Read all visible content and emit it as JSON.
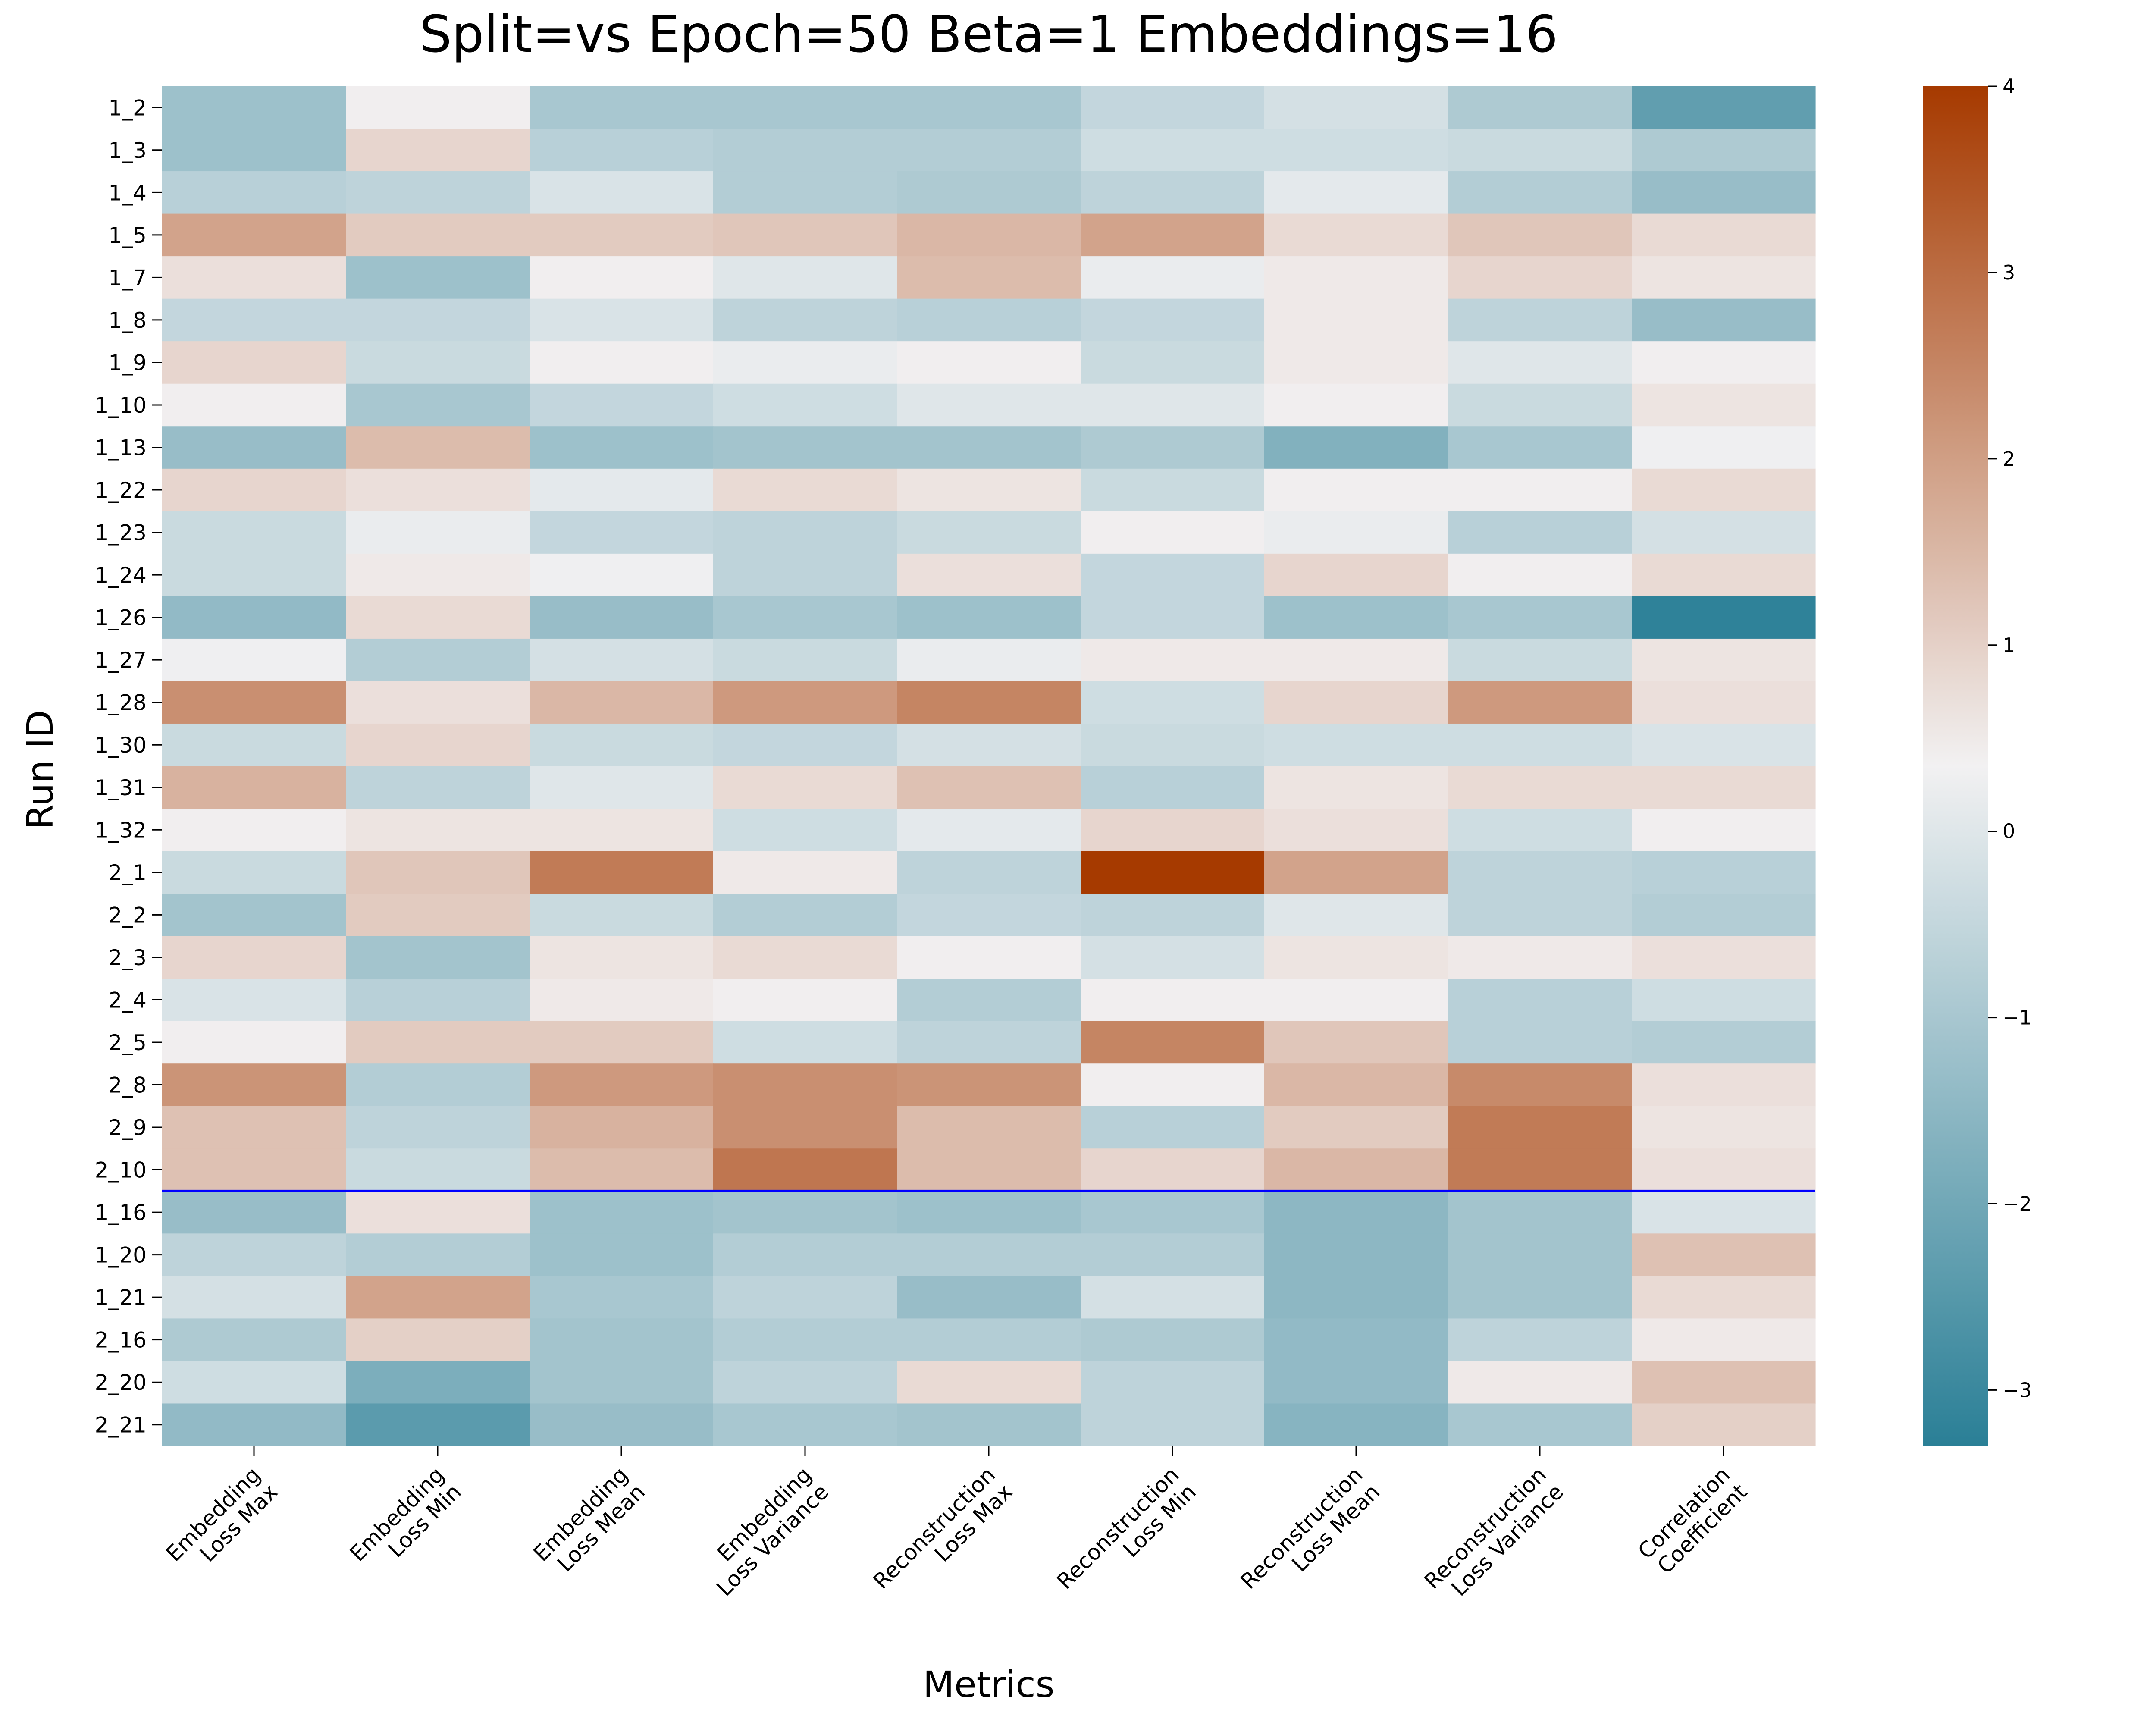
{
  "chart_data": {
    "type": "heatmap",
    "title": "Split=vs Epoch=50 Beta=1 Embeddings=16",
    "xlabel": "Metrics",
    "ylabel": "Run ID",
    "columns": [
      "Embedding\nLoss Max",
      "Embedding\nLoss Min",
      "Embedding\nLoss Mean",
      "Embedding\nLoss Variance",
      "Reconstruction\nLoss Max",
      "Reconstruction\nLoss Min",
      "Reconstruction\nLoss Mean",
      "Reconstruction\nLoss Variance",
      "Correlation\nCoefficient"
    ],
    "rows": [
      "1_2",
      "1_3",
      "1_4",
      "1_5",
      "1_7",
      "1_8",
      "1_9",
      "1_10",
      "1_13",
      "1_22",
      "1_23",
      "1_24",
      "1_26",
      "1_27",
      "1_28",
      "1_30",
      "1_31",
      "1_32",
      "2_1",
      "2_2",
      "2_3",
      "2_4",
      "2_5",
      "2_8",
      "2_9",
      "2_10",
      "1_16",
      "1_20",
      "1_21",
      "2_16",
      "2_20",
      "2_21"
    ],
    "values": [
      [
        -1.2,
        0.4,
        -1.0,
        -1.0,
        -1.0,
        -0.5,
        -0.2,
        -0.9,
        -2.3
      ],
      [
        -1.2,
        0.9,
        -0.7,
        -0.8,
        -0.8,
        -0.3,
        -0.3,
        -0.4,
        -0.9
      ],
      [
        -0.7,
        -0.6,
        -0.1,
        -0.8,
        -0.9,
        -0.6,
        0.1,
        -0.8,
        -1.3
      ],
      [
        1.9,
        1.1,
        1.1,
        1.2,
        1.5,
        1.9,
        0.8,
        1.2,
        0.8
      ],
      [
        0.7,
        -1.2,
        0.4,
        0.0,
        1.4,
        0.2,
        0.5,
        0.9,
        0.6
      ],
      [
        -0.5,
        -0.5,
        -0.1,
        -0.6,
        -0.7,
        -0.5,
        0.5,
        -0.6,
        -1.3
      ],
      [
        0.9,
        -0.4,
        0.4,
        0.2,
        0.4,
        -0.4,
        0.5,
        0.0,
        0.4
      ],
      [
        0.4,
        -1.0,
        -0.5,
        -0.3,
        0.0,
        0.0,
        0.4,
        -0.4,
        0.6
      ],
      [
        -1.3,
        1.4,
        -1.2,
        -1.1,
        -1.1,
        -0.9,
        -1.7,
        -1.0,
        0.3
      ],
      [
        0.9,
        0.7,
        0.1,
        0.8,
        0.6,
        -0.4,
        0.4,
        0.4,
        0.8
      ],
      [
        -0.4,
        0.2,
        -0.5,
        -0.6,
        -0.4,
        0.4,
        0.2,
        -0.7,
        -0.2
      ],
      [
        -0.4,
        0.5,
        0.3,
        -0.6,
        0.7,
        -0.5,
        0.9,
        0.4,
        0.8
      ],
      [
        -1.4,
        0.8,
        -1.3,
        -1.0,
        -1.2,
        -0.5,
        -1.2,
        -1.0,
        -3.2
      ],
      [
        0.3,
        -0.8,
        -0.2,
        -0.4,
        0.2,
        0.5,
        0.5,
        -0.4,
        0.6
      ],
      [
        2.3,
        0.7,
        1.5,
        2.1,
        2.5,
        -0.3,
        0.9,
        2.1,
        0.7
      ],
      [
        -0.4,
        0.9,
        -0.4,
        -0.5,
        -0.2,
        -0.4,
        -0.3,
        -0.3,
        -0.1
      ],
      [
        1.6,
        -0.6,
        0.0,
        0.8,
        1.3,
        -0.7,
        0.6,
        0.8,
        0.8
      ],
      [
        0.4,
        0.6,
        0.6,
        -0.3,
        0.1,
        0.9,
        0.7,
        -0.3,
        0.4
      ],
      [
        -0.4,
        1.2,
        2.7,
        0.5,
        -0.6,
        4.0,
        1.9,
        -0.6,
        -0.7
      ],
      [
        -1.1,
        1.1,
        -0.4,
        -0.8,
        -0.5,
        -0.6,
        0.0,
        -0.6,
        -0.8
      ],
      [
        0.9,
        -1.1,
        0.6,
        0.8,
        0.4,
        -0.2,
        0.6,
        0.5,
        0.7
      ],
      [
        -0.1,
        -0.7,
        0.5,
        0.4,
        -0.8,
        0.4,
        0.4,
        -0.7,
        -0.3
      ],
      [
        0.4,
        1.1,
        1.1,
        -0.3,
        -0.6,
        2.5,
        1.2,
        -0.7,
        -0.8
      ],
      [
        2.2,
        -0.8,
        2.1,
        2.3,
        2.2,
        0.4,
        1.5,
        2.4,
        0.7
      ],
      [
        1.3,
        -0.6,
        1.6,
        2.3,
        1.4,
        -0.7,
        1.1,
        2.7,
        0.6
      ],
      [
        1.3,
        -0.4,
        1.4,
        2.8,
        1.4,
        0.9,
        1.5,
        2.7,
        0.7
      ],
      [
        -1.3,
        0.7,
        -1.2,
        -1.1,
        -1.2,
        -1.0,
        -1.5,
        -1.1,
        -0.1
      ],
      [
        -0.6,
        -0.8,
        -1.2,
        -0.8,
        -0.8,
        -0.8,
        -1.5,
        -1.1,
        1.3
      ],
      [
        -0.2,
        1.9,
        -1.0,
        -0.6,
        -1.3,
        -0.2,
        -1.5,
        -1.1,
        0.8
      ],
      [
        -0.9,
        1.0,
        -1.1,
        -0.8,
        -0.8,
        -0.9,
        -1.4,
        -0.6,
        0.5
      ],
      [
        -0.3,
        -1.8,
        -1.1,
        -0.6,
        0.8,
        -0.6,
        -1.4,
        0.5,
        1.3
      ],
      [
        -1.4,
        -2.4,
        -1.3,
        -1.0,
        -1.1,
        -0.6,
        -1.6,
        -1.0,
        1.0
      ]
    ],
    "vmin": -3.3,
    "vmax": 4.0,
    "colorbar_ticks": [
      -3,
      -2,
      -1,
      0,
      1,
      2,
      3,
      4
    ],
    "separator_after_row": "2_10",
    "separator_color": "#0000ff",
    "colors": {
      "low": "#2a7f96",
      "mid": "#f2f1f2",
      "high": "#a63a00"
    }
  }
}
